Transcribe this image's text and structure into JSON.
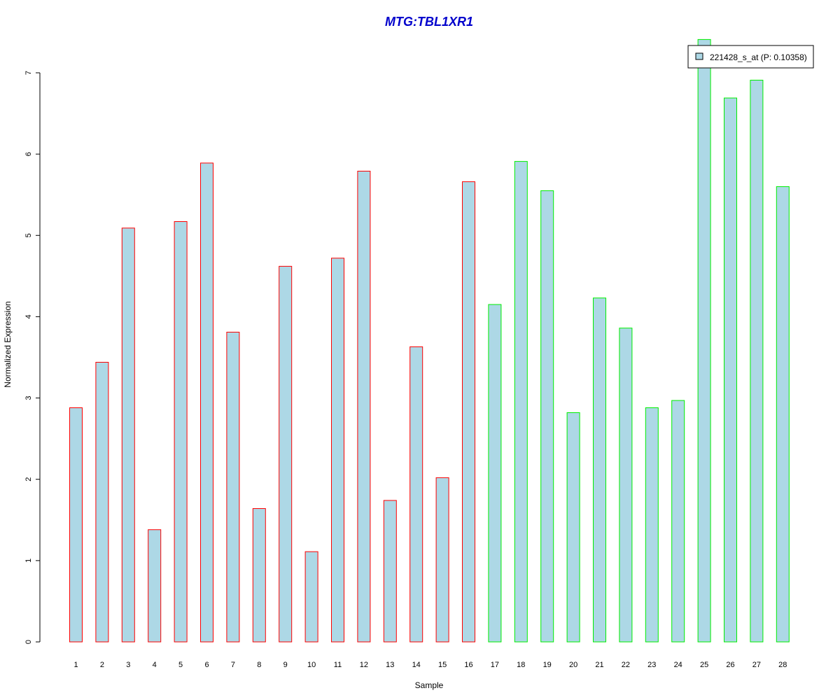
{
  "chart_data": {
    "type": "bar",
    "title": "MTG:TBL1XR1",
    "xlabel": "Sample",
    "ylabel": "Normalized Expression",
    "ylim": [
      0,
      7
    ],
    "yticks": [
      0,
      1,
      2,
      3,
      4,
      5,
      6,
      7
    ],
    "categories": [
      "1",
      "2",
      "3",
      "4",
      "5",
      "6",
      "7",
      "8",
      "9",
      "10",
      "11",
      "12",
      "13",
      "14",
      "15",
      "16",
      "17",
      "18",
      "19",
      "20",
      "21",
      "22",
      "23",
      "24",
      "25",
      "26",
      "27",
      "28"
    ],
    "values": [
      2.88,
      3.44,
      5.09,
      1.38,
      5.17,
      5.89,
      3.81,
      1.64,
      4.62,
      1.11,
      4.72,
      5.79,
      1.74,
      3.63,
      2.02,
      5.66,
      4.15,
      5.91,
      5.55,
      2.82,
      4.23,
      3.86,
      2.88,
      2.97,
      7.41,
      6.69,
      6.91,
      5.6
    ],
    "groups": [
      1,
      1,
      1,
      1,
      1,
      1,
      1,
      1,
      1,
      1,
      1,
      1,
      1,
      1,
      1,
      1,
      2,
      2,
      2,
      2,
      2,
      2,
      2,
      2,
      2,
      2,
      2,
      2
    ],
    "legend": {
      "position": "top-right",
      "entries": [
        {
          "label": "221428_s_at (P: 0.10358)"
        }
      ]
    },
    "grid": false
  },
  "colors": {
    "title": "#0000cc",
    "bar_fill": "#add8e6",
    "group1_border": "#ff0000",
    "group2_border": "#00ee00",
    "axis": "#000000"
  }
}
